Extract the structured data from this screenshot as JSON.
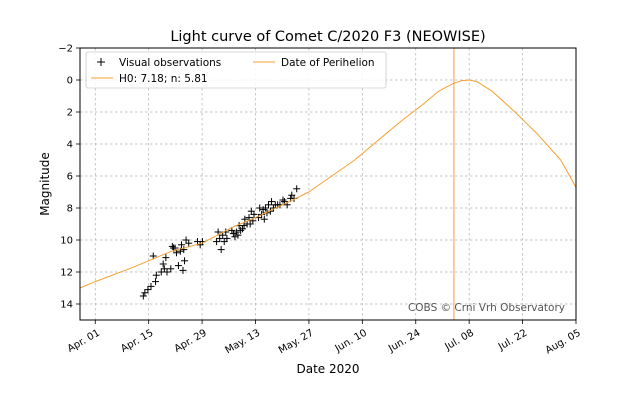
{
  "chart_data": {
    "type": "scatter",
    "title": "Light curve of Comet C/2020 F3 (NEOWISE)",
    "xlabel": "Date 2020",
    "ylabel": "Magnitude",
    "credit": "COBS © Crni Vrh Observatory",
    "xlim": [
      -4,
      126
    ],
    "ylim": [
      15,
      -2
    ],
    "y_inverted": true,
    "grid": true,
    "legend_position": "upper-left",
    "x_ticks": [
      {
        "day": 0,
        "label": "Apr. 01"
      },
      {
        "day": 14,
        "label": "Apr. 15"
      },
      {
        "day": 28,
        "label": "Apr. 29"
      },
      {
        "day": 42,
        "label": "May. 13"
      },
      {
        "day": 56,
        "label": "May. 27"
      },
      {
        "day": 70,
        "label": "Jun. 10"
      },
      {
        "day": 84,
        "label": "Jun. 24"
      },
      {
        "day": 98,
        "label": "Jul. 08"
      },
      {
        "day": 112,
        "label": "Jul. 22"
      },
      {
        "day": 126,
        "label": "Aug. 05"
      }
    ],
    "y_ticks": [
      {
        "value": -2,
        "label": "−2"
      },
      {
        "value": 0,
        "label": "0"
      },
      {
        "value": 2,
        "label": "2"
      },
      {
        "value": 4,
        "label": "4"
      },
      {
        "value": 6,
        "label": "6"
      },
      {
        "value": 8,
        "label": "8"
      },
      {
        "value": 10,
        "label": "10"
      },
      {
        "value": 12,
        "label": "12"
      },
      {
        "value": 14,
        "label": "14"
      }
    ],
    "legend": [
      {
        "key": "observations",
        "label": "Visual observations"
      },
      {
        "key": "fit",
        "label": "H0: 7.18; n: 5.81"
      },
      {
        "key": "perihelion",
        "label": "Date of Perihelion"
      }
    ],
    "series": [
      {
        "name": "Visual observations",
        "type": "scatter",
        "marker": "+",
        "color": "#000000",
        "points": [
          [
            12.6,
            13.5
          ],
          [
            13.0,
            13.3
          ],
          [
            13.8,
            13.1
          ],
          [
            14.6,
            12.9
          ],
          [
            15.2,
            11.0
          ],
          [
            15.8,
            12.6
          ],
          [
            16.0,
            12.2
          ],
          [
            17.3,
            12.0
          ],
          [
            17.8,
            11.5
          ],
          [
            18.1,
            11.8
          ],
          [
            18.5,
            11.1
          ],
          [
            18.8,
            12.0
          ],
          [
            19.8,
            11.8
          ],
          [
            20.2,
            10.4
          ],
          [
            20.5,
            10.5
          ],
          [
            20.9,
            10.5
          ],
          [
            21.3,
            10.8
          ],
          [
            21.8,
            11.6
          ],
          [
            22.3,
            10.7
          ],
          [
            22.6,
            10.3
          ],
          [
            23.0,
            11.9
          ],
          [
            23.2,
            10.6
          ],
          [
            23.4,
            11.3
          ],
          [
            23.8,
            10.0
          ],
          [
            24.5,
            10.2
          ],
          [
            26.8,
            10.1
          ],
          [
            27.5,
            10.3
          ],
          [
            28.1,
            10.1
          ],
          [
            31.8,
            10.1
          ],
          [
            32.2,
            9.5
          ],
          [
            32.6,
            9.9
          ],
          [
            33.0,
            10.6
          ],
          [
            33.4,
            9.7
          ],
          [
            33.8,
            10.1
          ],
          [
            34.2,
            9.5
          ],
          [
            34.5,
            9.9
          ],
          [
            35.8,
            9.4
          ],
          [
            36.2,
            9.6
          ],
          [
            36.6,
            9.8
          ],
          [
            37.0,
            9.5
          ],
          [
            37.4,
            9.7
          ],
          [
            37.7,
            9.1
          ],
          [
            38.1,
            9.4
          ],
          [
            38.6,
            9.3
          ],
          [
            39.0,
            9.1
          ],
          [
            39.2,
            8.7
          ],
          [
            39.8,
            9.0
          ],
          [
            40.3,
            8.6
          ],
          [
            40.6,
            9.0
          ],
          [
            40.9,
            8.2
          ],
          [
            41.3,
            8.8
          ],
          [
            41.6,
            8.4
          ],
          [
            42.8,
            8.6
          ],
          [
            43.1,
            8.0
          ],
          [
            43.6,
            8.4
          ],
          [
            44.0,
            8.1
          ],
          [
            44.3,
            8.7
          ],
          [
            44.6,
            8.0
          ],
          [
            45.0,
            8.3
          ],
          [
            45.4,
            7.8
          ],
          [
            45.9,
            8.2
          ],
          [
            46.2,
            7.6
          ],
          [
            46.7,
            8.0
          ],
          [
            47.2,
            7.8
          ],
          [
            47.8,
            7.8
          ],
          [
            48.4,
            7.8
          ],
          [
            49.2,
            7.5
          ],
          [
            49.6,
            7.6
          ],
          [
            50.3,
            7.8
          ],
          [
            51.2,
            7.4
          ],
          [
            51.5,
            7.2
          ],
          [
            52.1,
            7.4
          ],
          [
            52.8,
            6.8
          ]
        ]
      },
      {
        "name": "H0: 7.18; n: 5.81",
        "type": "line",
        "color": "#f5a030",
        "points": [
          [
            -4,
            13.0
          ],
          [
            0,
            12.6
          ],
          [
            10,
            11.7
          ],
          [
            20,
            10.7
          ],
          [
            28,
            10.2
          ],
          [
            36,
            9.2
          ],
          [
            42,
            8.6
          ],
          [
            50,
            7.7
          ],
          [
            56,
            7.0
          ],
          [
            62,
            6.0
          ],
          [
            68,
            5.0
          ],
          [
            74,
            3.8
          ],
          [
            80,
            2.6
          ],
          [
            86,
            1.5
          ],
          [
            90,
            0.7
          ],
          [
            94,
            0.2
          ],
          [
            96,
            0.05
          ],
          [
            98,
            0.0
          ],
          [
            100,
            0.1
          ],
          [
            104,
            0.7
          ],
          [
            110,
            2.0
          ],
          [
            116,
            3.4
          ],
          [
            122,
            5.0
          ],
          [
            126,
            6.7
          ]
        ]
      },
      {
        "name": "Date of Perihelion",
        "type": "vline",
        "color": "#f5a030",
        "x": 94
      }
    ]
  }
}
